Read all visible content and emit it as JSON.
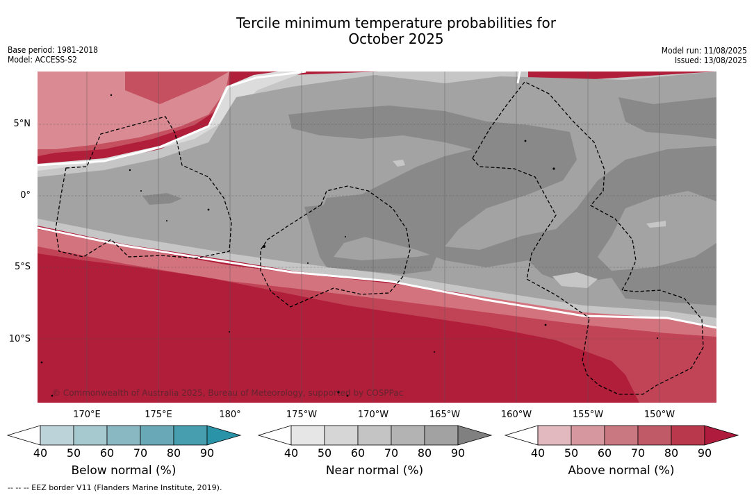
{
  "title": {
    "line1": "Tercile minimum temperature probabilities for",
    "line2": "October 2025"
  },
  "meta": {
    "base_period": "Base period: 1981-2018",
    "model": "Model: ACCESS-S2",
    "model_run": "Model run: 11/08/2025",
    "issued": "Issued: 13/08/2025"
  },
  "map": {
    "lat_labels": [
      "5°N",
      "0°",
      "5°S",
      "10°S"
    ],
    "lon_labels": [
      "170°E",
      "175°E",
      "180°",
      "175°W",
      "170°W",
      "165°W",
      "160°W",
      "155°W",
      "150°W"
    ],
    "copyright": "© Commonwealth of Australia 2025, Bureau of Meteorology, supported by COSPPac",
    "colors": {
      "above_strong": "#b01e3a",
      "above_mid": "#c45060",
      "above_light": "#d98a92",
      "near_dark": "#898989",
      "near_mid": "#a3a3a3",
      "near_light": "#c6c6c6",
      "near_pale": "#dcdcdc"
    }
  },
  "colorbars": [
    {
      "title": "Below normal (%)",
      "ticks": [
        "40",
        "50",
        "60",
        "70",
        "80",
        "90"
      ],
      "colors": [
        "#ffffff",
        "#bdd3da",
        "#a6c8cf",
        "#89b7c2",
        "#69a9b7",
        "#469eae",
        "#2a93a8"
      ]
    },
    {
      "title": "Near normal (%)",
      "ticks": [
        "40",
        "50",
        "60",
        "70",
        "80",
        "90"
      ],
      "colors": [
        "#ffffff",
        "#e6e6e6",
        "#d6d6d6",
        "#c4c4c4",
        "#b3b3b3",
        "#a2a2a2",
        "#808080"
      ]
    },
    {
      "title": "Above normal (%)",
      "ticks": [
        "40",
        "50",
        "60",
        "70",
        "80",
        "90"
      ],
      "colors": [
        "#ffffff",
        "#e1b9bf",
        "#d6979e",
        "#c97780",
        "#c15a67",
        "#b9384c",
        "#ae1b3c"
      ]
    }
  ],
  "footnote": "--  --  -- EEZ border V11 (Flanders Marine Institute, 2019)."
}
